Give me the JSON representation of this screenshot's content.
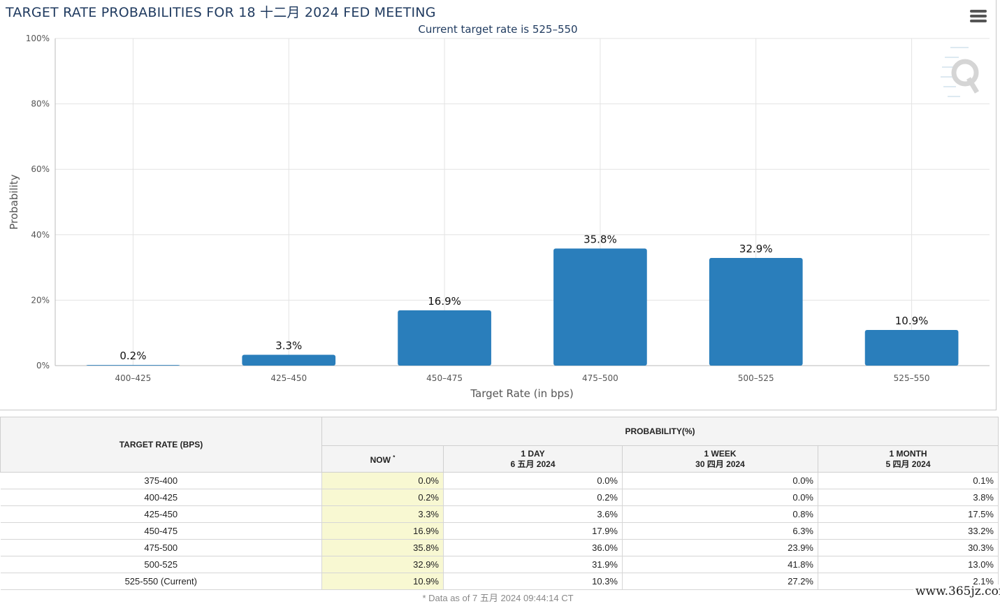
{
  "chart_title": "TARGET RATE PROBABILITIES FOR 18 十二月 2024 FED MEETING",
  "chart_data": {
    "type": "bar",
    "title": "TARGET RATE PROBABILITIES FOR 18 十二月 2024 FED MEETING",
    "subtitle": "Current target rate is 525–550",
    "xlabel": "Target Rate (in bps)",
    "ylabel": "Probability",
    "categories": [
      "400–425",
      "425–450",
      "450–475",
      "475–500",
      "500–525",
      "525–550"
    ],
    "values": [
      0.2,
      3.3,
      16.9,
      35.8,
      32.9,
      10.9
    ],
    "data_labels": [
      "0.2%",
      "3.3%",
      "16.9%",
      "35.8%",
      "32.9%",
      "10.9%"
    ],
    "ylim": [
      0,
      100
    ],
    "yticks": [
      "0%",
      "20%",
      "40%",
      "60%",
      "80%",
      "100%"
    ],
    "color": "#2a7ebb",
    "grid": true,
    "legend": "none"
  },
  "icons": {
    "menu": "hamburger-menu-icon",
    "logo": "cme-fedwatch-q-logo"
  },
  "table": {
    "header_rate": "TARGET RATE (BPS)",
    "header_probability": "PROBABILITY(%)",
    "columns": [
      {
        "line1": "NOW",
        "line2": "",
        "marker": "*"
      },
      {
        "line1": "1 DAY",
        "line2": "6 五月 2024",
        "marker": ""
      },
      {
        "line1": "1 WEEK",
        "line2": "30 四月 2024",
        "marker": ""
      },
      {
        "line1": "1 MONTH",
        "line2": "5 四月 2024",
        "marker": ""
      }
    ],
    "rows": [
      {
        "rate": "375-400",
        "now": "0.0%",
        "day": "0.0%",
        "week": "0.0%",
        "month": "0.1%"
      },
      {
        "rate": "400-425",
        "now": "0.2%",
        "day": "0.2%",
        "week": "0.0%",
        "month": "3.8%"
      },
      {
        "rate": "425-450",
        "now": "3.3%",
        "day": "3.6%",
        "week": "0.8%",
        "month": "17.5%"
      },
      {
        "rate": "450-475",
        "now": "16.9%",
        "day": "17.9%",
        "week": "6.3%",
        "month": "33.2%"
      },
      {
        "rate": "475-500",
        "now": "35.8%",
        "day": "36.0%",
        "week": "23.9%",
        "month": "30.3%"
      },
      {
        "rate": "500-525",
        "now": "32.9%",
        "day": "31.9%",
        "week": "41.8%",
        "month": "13.0%"
      },
      {
        "rate": "525-550 (Current)",
        "now": "10.9%",
        "day": "10.3%",
        "week": "27.2%",
        "month": "2.1%"
      }
    ],
    "highlight_color": "#f8f8d2"
  },
  "footnote": "* Data as of 7 五月 2024 09:44:14 CT",
  "watermark": "www.365jz.com"
}
